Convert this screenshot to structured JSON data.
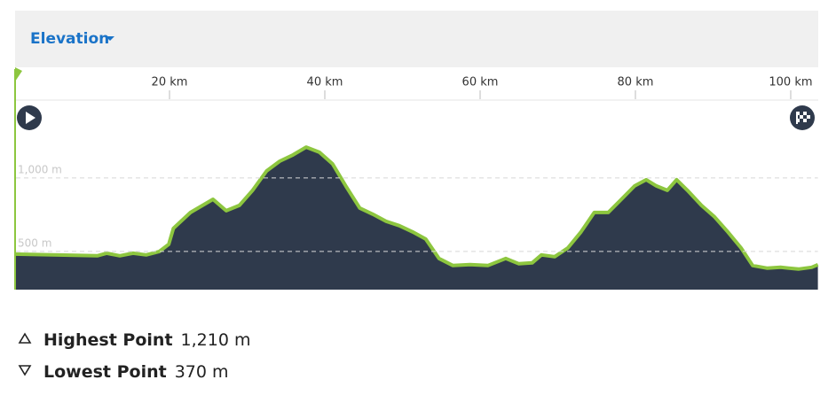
{
  "chart_data": {
    "type": "area",
    "title": "Elevation",
    "x": [
      0,
      10.7,
      11.9,
      13.6,
      15.3,
      17,
      18.7,
      19.9,
      20.5,
      22.7,
      25.6,
      27.3,
      29,
      30.7,
      32.5,
      34.2,
      35.9,
      37.6,
      39.3,
      41,
      42.7,
      44.5,
      46.2,
      47.9,
      49.6,
      51.3,
      53,
      54.7,
      56.5,
      58.7,
      61,
      63.3,
      65,
      66.7,
      67.9,
      69.6,
      71.3,
      73,
      74.7,
      76.5,
      78.2,
      79.9,
      81.4,
      82.7,
      84.1,
      85.3,
      86.7,
      88.5,
      90.2,
      91.9,
      93.6,
      95.1,
      97,
      98.7,
      101,
      102.7,
      103.5
    ],
    "series": [
      {
        "name": "Elevation",
        "color": "#8dc63f",
        "fill": "#2f3a4c",
        "values": [
          482,
          470,
          488,
          470,
          488,
          476,
          500,
          548,
          657,
          765,
          855,
          777,
          813,
          916,
          1048,
          1114,
          1157,
          1210,
          1175,
          1096,
          946,
          795,
          753,
          705,
          675,
          633,
          584,
          452,
          404,
          410,
          404,
          452,
          416,
          422,
          476,
          464,
          524,
          633,
          765,
          765,
          855,
          946,
          988,
          946,
          916,
          988,
          916,
          813,
          735,
          633,
          524,
          404,
          386,
          392,
          380,
          392,
          410
        ]
      }
    ],
    "xlim": [
      0,
      103.5
    ],
    "ylim": [
      240,
      1530
    ],
    "xticks": [
      {
        "value": 20,
        "label": "20 km"
      },
      {
        "value": 40,
        "label": "40 km"
      },
      {
        "value": 60,
        "label": "60 km"
      },
      {
        "value": 80,
        "label": "80 km"
      },
      {
        "value": 100,
        "label": "100 km"
      }
    ],
    "yticks": [
      {
        "value": 500,
        "label": "500 m"
      },
      {
        "value": 1000,
        "label": "1,000 m"
      }
    ],
    "grid": true
  },
  "stats": [
    {
      "label": "Highest Point",
      "value": "1,210 m"
    },
    {
      "label": "Lowest Point",
      "value": "370 m"
    }
  ]
}
